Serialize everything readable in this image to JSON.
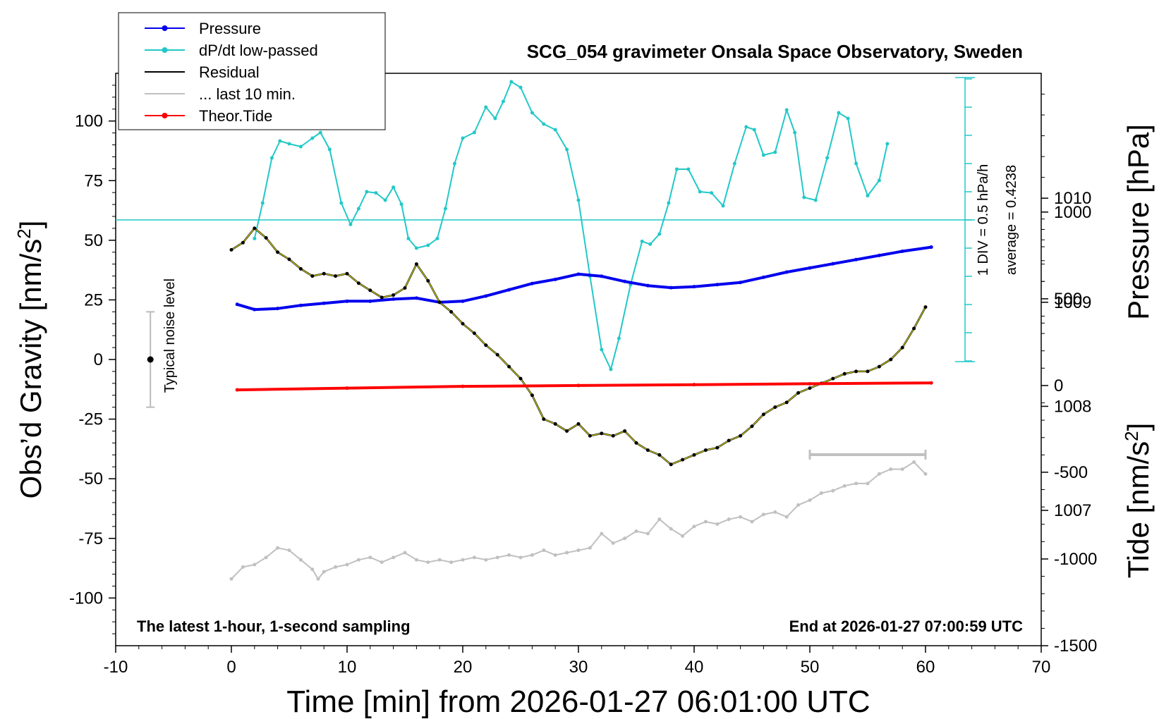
{
  "chart_data": {
    "type": "line",
    "title": "SCG_054 gravimeter Onsala Space Observatory, Sweden",
    "xlabel": "Time [min] from 2026-01-27 06:01:00 UTC",
    "ylabel_left": "Obs’d Gravity [nm/s",
    "ylabel_left_sup": "2",
    "ylabel_left_end": "]",
    "ylabel_right_pressure": "Pressure [hPa]",
    "ylabel_right_tide": "Tide [nm/s",
    "ylabel_right_tide_sup": "2",
    "ylabel_right_tide_end": "]",
    "bottom_left_note": "The latest 1-hour, 1-second sampling",
    "bottom_right_note": "End at 2026-01-27 07:00:59 UTC",
    "noise_label": "Typical noise level",
    "noise_range": [
      -20,
      20
    ],
    "noise_x": -7,
    "dpdt_scale_label": "1 DIV = 0.5 hPa/h",
    "dpdt_average_label": "average = 0.4238",
    "xlim": [
      -10,
      70
    ],
    "xticks": [
      "-10",
      "0",
      "10",
      "20",
      "30",
      "40",
      "50",
      "60",
      "70"
    ],
    "ylim_gravity": [
      -120,
      120
    ],
    "yticks_gravity": [
      "100",
      "75",
      "50",
      "25",
      "0",
      "-25",
      "-50",
      "-75",
      "-100"
    ],
    "pressure_ticks": [
      "1010",
      "1009",
      "1008",
      "1007"
    ],
    "pressure_range": [
      1005.7,
      1011.2
    ],
    "tide_ticks": [
      "1000",
      "500",
      "0",
      "-500",
      "-1000",
      "-1500"
    ],
    "tide_range": [
      -1500,
      1800
    ],
    "last10_bar": [
      50,
      60
    ],
    "legend": [
      {
        "label": "Pressure",
        "color": "#0000ee",
        "marker": true
      },
      {
        "label": "dP/dt low-passed",
        "color": "#22c8c8",
        "marker": true
      },
      {
        "label": "Residual",
        "color": "#000000",
        "marker": false
      },
      {
        "label": "... last 10 min.",
        "color": "#c0c0c0",
        "marker": false
      },
      {
        "label": "Theor.Tide",
        "color": "#ff0000",
        "marker": true
      }
    ],
    "series": [
      {
        "name": "Pressure",
        "color": "#0000ee",
        "unit": "hPa",
        "x": [
          0.5,
          2,
          4,
          6,
          8,
          10,
          12,
          14,
          16,
          18,
          20,
          22,
          24,
          26,
          28,
          30,
          32,
          34,
          36,
          38,
          40,
          42,
          44,
          46,
          48,
          50,
          52,
          54,
          56,
          58,
          60.5
        ],
        "values": [
          1008.98,
          1008.93,
          1008.94,
          1008.97,
          1008.99,
          1009.01,
          1009.01,
          1009.03,
          1009.04,
          1009.0,
          1009.01,
          1009.06,
          1009.12,
          1009.18,
          1009.22,
          1009.27,
          1009.25,
          1009.2,
          1009.16,
          1009.14,
          1009.15,
          1009.17,
          1009.19,
          1009.24,
          1009.29,
          1009.33,
          1009.37,
          1009.41,
          1009.45,
          1009.49,
          1009.53
        ]
      },
      {
        "name": "dP/dt low-passed",
        "color": "#22c8c8",
        "unit": "hPa/h (0.5 per div, zero line = average)",
        "x": [
          2.0,
          2.7,
          3.5,
          4.2,
          5.0,
          6.0,
          7.0,
          7.7,
          8.5,
          9.5,
          10.3,
          11.0,
          11.7,
          12.5,
          13.3,
          14.0,
          14.7,
          15.3,
          16.0,
          17.0,
          17.8,
          18.5,
          19.3,
          20.0,
          21.0,
          22.0,
          22.8,
          23.5,
          24.2,
          25.0,
          26.0,
          27.0,
          28.0,
          29.0,
          30.0,
          31.0,
          32.0,
          32.8,
          33.5,
          34.5,
          35.5,
          36.2,
          37.0,
          37.8,
          38.5,
          39.5,
          40.5,
          41.5,
          42.5,
          43.5,
          44.5,
          45.2,
          46.0,
          47.0,
          48.0,
          48.7,
          49.5,
          50.5,
          51.5,
          52.5,
          53.3,
          54.0,
          55.0,
          56.0,
          56.7
        ],
        "values": [
          -0.33,
          0.3,
          1.1,
          1.4,
          1.35,
          1.3,
          1.45,
          1.55,
          1.25,
          0.3,
          -0.08,
          0.2,
          0.5,
          0.48,
          0.35,
          0.58,
          0.28,
          -0.33,
          -0.5,
          -0.45,
          -0.33,
          0.2,
          1.0,
          1.45,
          1.55,
          2.0,
          1.8,
          2.1,
          2.45,
          2.35,
          1.9,
          1.7,
          1.6,
          1.25,
          0.35,
          -1.0,
          -2.3,
          -2.65,
          -2.1,
          -1.15,
          -0.38,
          -0.43,
          -0.25,
          0.3,
          0.9,
          0.9,
          0.5,
          0.48,
          0.25,
          1.0,
          1.65,
          1.6,
          1.15,
          1.2,
          1.95,
          1.55,
          0.4,
          0.35,
          1.1,
          1.9,
          1.8,
          1.0,
          0.43,
          0.7,
          1.35
        ]
      },
      {
        "name": "Residual",
        "color": "#000000",
        "unit": "nm/s2",
        "x": [
          0,
          1,
          2,
          3,
          4,
          5,
          6,
          7,
          8,
          9,
          10,
          11,
          12,
          13,
          14,
          15,
          16,
          17,
          18,
          19,
          20,
          21,
          22,
          23,
          24,
          25,
          26,
          27,
          28,
          29,
          30,
          31,
          32,
          33,
          34,
          35,
          36,
          37,
          38,
          39,
          40,
          41,
          42,
          43,
          44,
          45,
          46,
          47,
          48,
          49,
          50,
          51,
          52,
          53,
          54,
          55,
          56,
          57,
          58,
          59,
          60
        ],
        "values": [
          46,
          49,
          55,
          51,
          45,
          42,
          38,
          35,
          36,
          35,
          36,
          32,
          29,
          26,
          27,
          30,
          40,
          33,
          24,
          20,
          15,
          11,
          6,
          2,
          -3,
          -8,
          -15,
          -25,
          -27,
          -30,
          -27,
          -32,
          -31,
          -32,
          -30,
          -35,
          -38,
          -40,
          -44,
          -42,
          -40,
          -38,
          -37,
          -34,
          -32,
          -28,
          -23,
          -20,
          -18,
          -14,
          -12,
          -10,
          -8,
          -6,
          -5,
          -5,
          -3,
          0,
          5,
          13,
          22
        ]
      },
      {
        "name": "... last 10 min.",
        "color": "#c0c0c0",
        "unit": "nm/s2 (scaled)",
        "x": [
          0,
          1,
          2,
          3,
          4,
          5,
          6,
          7,
          7.5,
          8,
          9,
          10,
          11,
          12,
          13,
          14,
          15,
          16,
          17,
          18,
          19,
          20,
          21,
          22,
          23,
          24,
          25,
          26,
          27,
          28,
          29,
          30,
          31,
          32,
          33,
          34,
          35,
          36,
          37,
          38,
          39,
          40,
          41,
          42,
          43,
          44,
          45,
          46,
          47,
          48,
          49,
          50,
          51,
          52,
          53,
          54,
          55,
          56,
          57,
          58,
          59,
          60
        ],
        "values": [
          -92,
          -87,
          -86,
          -83,
          -79,
          -80,
          -84,
          -88,
          -92,
          -89,
          -87,
          -86,
          -84,
          -83,
          -85,
          -83,
          -81,
          -84,
          -85,
          -84,
          -85,
          -84,
          -83,
          -84,
          -83,
          -82,
          -83,
          -82,
          -80,
          -82,
          -81,
          -80,
          -79,
          -73,
          -77,
          -75,
          -72,
          -73,
          -67,
          -71,
          -74,
          -70,
          -68,
          -69,
          -67,
          -66,
          -68,
          -65,
          -64,
          -66,
          -61,
          -59,
          -56,
          -55,
          -53,
          -52,
          -52,
          -48,
          -46,
          -46,
          -43,
          -48
        ]
      },
      {
        "name": "Theor.Tide",
        "color": "#ff0000",
        "unit": "nm/s2",
        "x": [
          0.5,
          10,
          20,
          30,
          40,
          50,
          60.5
        ],
        "values": [
          -25,
          -15,
          -5,
          0,
          5,
          10,
          15
        ]
      }
    ]
  }
}
